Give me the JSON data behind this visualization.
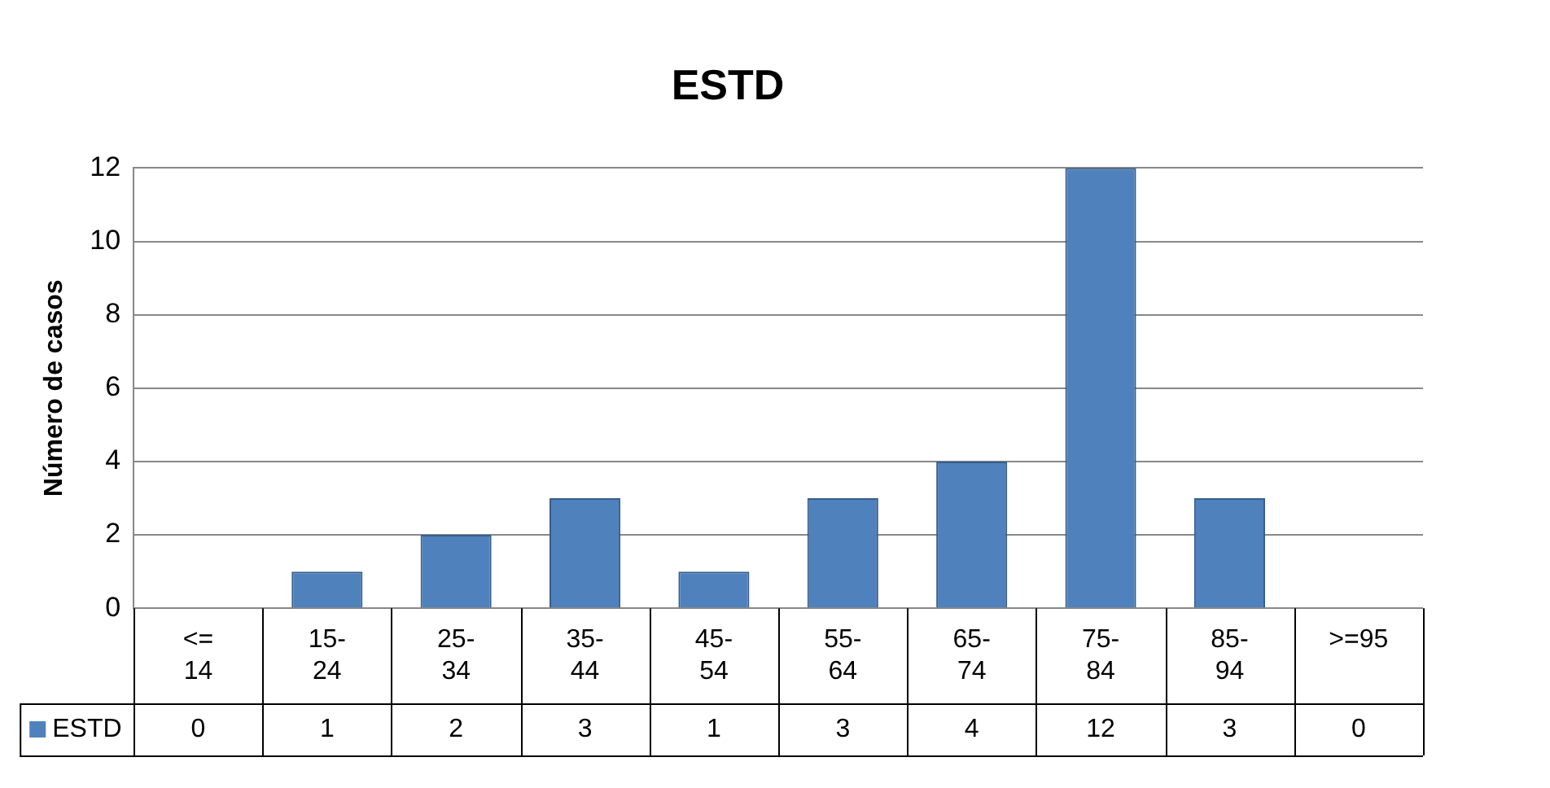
{
  "chart_data": {
    "type": "bar",
    "title": "ESTD",
    "ylabel": "Número de casos",
    "categories": [
      "<= 14",
      "15-24",
      "25-34",
      "35-44",
      "45-54",
      "55-64",
      "65-74",
      "75-84",
      "85-94",
      ">=95"
    ],
    "series": [
      {
        "name": "ESTD",
        "color": "#4f81bd",
        "values": [
          0,
          1,
          2,
          3,
          1,
          3,
          4,
          12,
          3,
          0
        ]
      }
    ],
    "ylim": [
      0,
      12
    ],
    "yticks": [
      0,
      2,
      4,
      6,
      8,
      10,
      12
    ],
    "grid": "y",
    "legend": "bottom",
    "data_labels": true
  }
}
